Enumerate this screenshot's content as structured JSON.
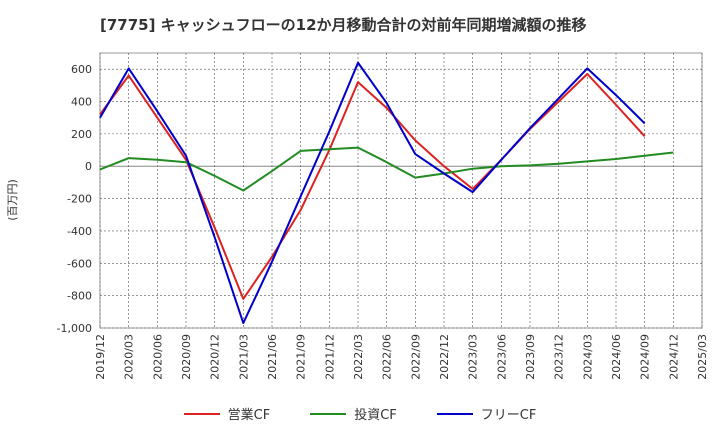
{
  "chart_data": {
    "type": "line",
    "title": "[7775]  キャッシュフローの12か月移動合計の対前年同期増減額の推移",
    "ylabel": "(百万円)",
    "xlabel": "",
    "ylim": [
      -1000,
      700
    ],
    "yticks": [
      600,
      400,
      200,
      0,
      -200,
      -400,
      -600,
      -800,
      -1000
    ],
    "ytick_labels": [
      "600",
      "400",
      "200",
      "0",
      "-200",
      "-400",
      "-600",
      "-800",
      "-1,000"
    ],
    "x_categories": [
      "2019/12",
      "2020/03",
      "2020/06",
      "2020/09",
      "2020/12",
      "2021/03",
      "2021/06",
      "2021/09",
      "2021/12",
      "2022/03",
      "2022/06",
      "2022/09",
      "2022/12",
      "2023/03",
      "2023/06",
      "2023/09",
      "2023/12",
      "2024/03",
      "2024/06",
      "2024/09",
      "2024/12",
      "2025/03"
    ],
    "series": [
      {
        "name": "営業CF",
        "color": "#dd2222",
        "values": [
          320,
          560,
          300,
          40,
          -380,
          -820,
          -560,
          -270,
          100,
          520,
          360,
          160,
          0,
          -140,
          40,
          230,
          400,
          570,
          380,
          185,
          null,
          null
        ]
      },
      {
        "name": "投資CF",
        "color": "#228b22",
        "values": [
          -20,
          50,
          40,
          25,
          -60,
          -150,
          -30,
          95,
          105,
          115,
          25,
          -70,
          -45,
          -15,
          0,
          5,
          15,
          30,
          45,
          65,
          85,
          null
        ]
      },
      {
        "name": "フリーCF",
        "color": "#0000cc",
        "values": [
          300,
          605,
          340,
          65,
          -440,
          -970,
          -590,
          -185,
          215,
          640,
          390,
          75,
          -45,
          -160,
          40,
          235,
          420,
          605,
          440,
          265,
          null,
          null
        ]
      }
    ],
    "legend_position": "bottom-center",
    "grid": true
  }
}
